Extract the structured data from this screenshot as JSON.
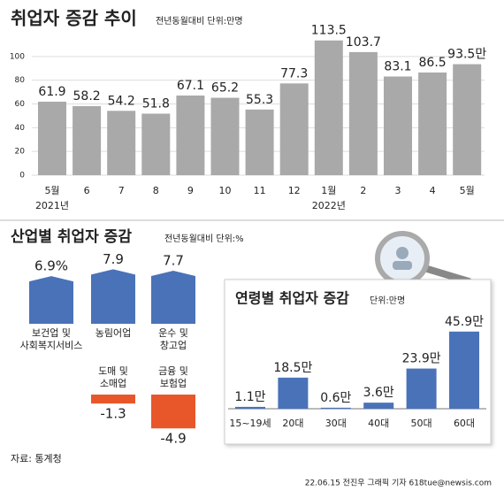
{
  "chart_data": [
    {
      "type": "bar",
      "title": "취업자 증감 추이",
      "subtitle": "전년동월대비 단위:만명",
      "categories": [
        "5월",
        "6",
        "7",
        "8",
        "9",
        "10",
        "11",
        "12",
        "1월",
        "2",
        "3",
        "4",
        "5월"
      ],
      "x_group_labels": [
        "2021년",
        "2022년"
      ],
      "values": [
        61.9,
        58.2,
        54.2,
        51.8,
        67.1,
        65.2,
        55.3,
        77.3,
        113.5,
        103.7,
        83.1,
        86.5,
        93.5
      ],
      "value_labels": [
        "61.9",
        "58.2",
        "54.2",
        "51.8",
        "67.1",
        "65.2",
        "55.3",
        "77.3",
        "113.5",
        "103.7",
        "83.1",
        "86.5",
        "93.5만"
      ],
      "color": "#a9a9a9",
      "ylim": [
        0,
        120
      ],
      "yticks": [
        0,
        20,
        40,
        60,
        80,
        100
      ],
      "grid": true
    },
    {
      "type": "bar",
      "title": "산업별 취업자 증감",
      "subtitle": "전년동월대비 단위:%",
      "categories": [
        "보건업 및\n사회복지서비스",
        "농림어업",
        "운수 및\n창고업",
        "도매 및\n소매업",
        "금융 및\n보험업"
      ],
      "values": [
        6.9,
        7.9,
        7.7,
        -1.3,
        -4.9
      ],
      "value_labels": [
        "6.9%",
        "7.9",
        "7.7",
        "-1.3",
        "-4.9"
      ],
      "color": "#4a72b8",
      "negative_color": "#e8572a"
    },
    {
      "type": "bar",
      "title": "연령별 취업자 증감",
      "subtitle": "단위:만명",
      "categories": [
        "15~19세",
        "20대",
        "30대",
        "40대",
        "50대",
        "60대"
      ],
      "values": [
        1.1,
        18.5,
        0.6,
        3.6,
        23.9,
        45.9
      ],
      "value_labels": [
        "1.1만",
        "18.5만",
        "0.6만",
        "3.6만",
        "23.9만",
        "45.9만"
      ],
      "color": "#4a72b8"
    }
  ],
  "source": "자료: 통계청",
  "credit": "22.06.15 전진우 그래픽 기자 618tue@newsis.com"
}
